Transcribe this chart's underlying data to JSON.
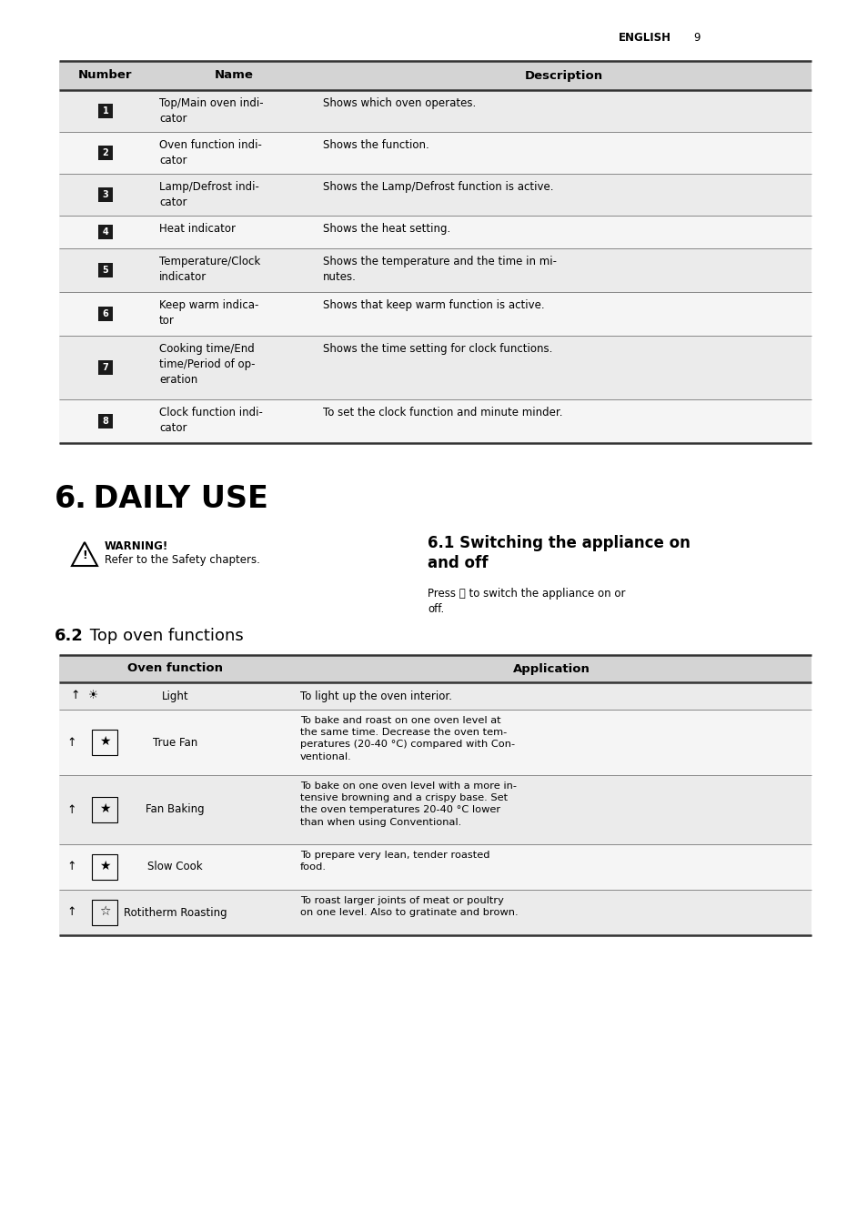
{
  "page_header_text": "ENGLISH",
  "page_number": "9",
  "bg_color": "#ffffff",
  "table1_header": [
    "Number",
    "Name",
    "Description"
  ],
  "table1_rows": [
    {
      "num": "1",
      "name": "Top/Main oven indi-\ncator",
      "desc": "Shows which oven operates."
    },
    {
      "num": "2",
      "name": "Oven function indi-\ncator",
      "desc": "Shows the function."
    },
    {
      "num": "3",
      "name": "Lamp/Defrost indi-\ncator",
      "desc": "Shows the Lamp/Defrost function is active."
    },
    {
      "num": "4",
      "name": "Heat indicator",
      "desc": "Shows the heat setting."
    },
    {
      "num": "5",
      "name": "Temperature/Clock\nindicator",
      "desc": "Shows the temperature and the time in mi-\nnutes."
    },
    {
      "num": "6",
      "name": "Keep warm indica-\ntor",
      "desc": "Shows that keep warm function is active."
    },
    {
      "num": "7",
      "name": "Cooking time/End\ntime/Period of op-\neration",
      "desc": "Shows the time setting for clock functions."
    },
    {
      "num": "8",
      "name": "Clock function indi-\ncator",
      "desc": "To set the clock function and minute minder."
    }
  ],
  "section_title_bold": "6.",
  "section_title_rest": " DAILY USE",
  "warning_bold": "WARNING!",
  "warning_body": "Refer to the Safety chapters.",
  "section_61_title": "6.1 Switching the appliance on\nand off",
  "section_61_body": "Press ⓘ to switch the appliance on or\noff.",
  "section_62_bold": "6.2",
  "section_62_rest": " Top oven functions",
  "table2_header": [
    "Oven function",
    "Application"
  ],
  "table2_rows": [
    {
      "func": "Light",
      "app": "To light up the oven interior.",
      "icon": "light"
    },
    {
      "func": "True Fan",
      "app": "To bake and roast on one oven level at\nthe same time. Decrease the oven tem-\nperatures (20-40 °C) compared with Con-\nventional.",
      "icon": "fan"
    },
    {
      "func": "Fan Baking",
      "app": "To bake on one oven level with a more in-\ntensive browning and a crispy base. Set\nthe oven temperatures 20-40 °C lower\nthan when using Conventional.",
      "icon": "fan"
    },
    {
      "func": "Slow Cook",
      "app": "To prepare very lean, tender roasted\nfood.",
      "icon": "fan"
    },
    {
      "func": "Rotitherm Roasting",
      "app": "To roast larger joints of meat or poultry\non one level. Also to gratinate and brown.",
      "icon": "rotitherm"
    }
  ],
  "table_header_bg": "#d4d4d4",
  "table_row_bg_odd": "#ebebeb",
  "table_row_bg_even": "#f5f5f5",
  "text_color": "#000000",
  "num_badge_bg": "#1a1a1a",
  "num_badge_fg": "#ffffff"
}
